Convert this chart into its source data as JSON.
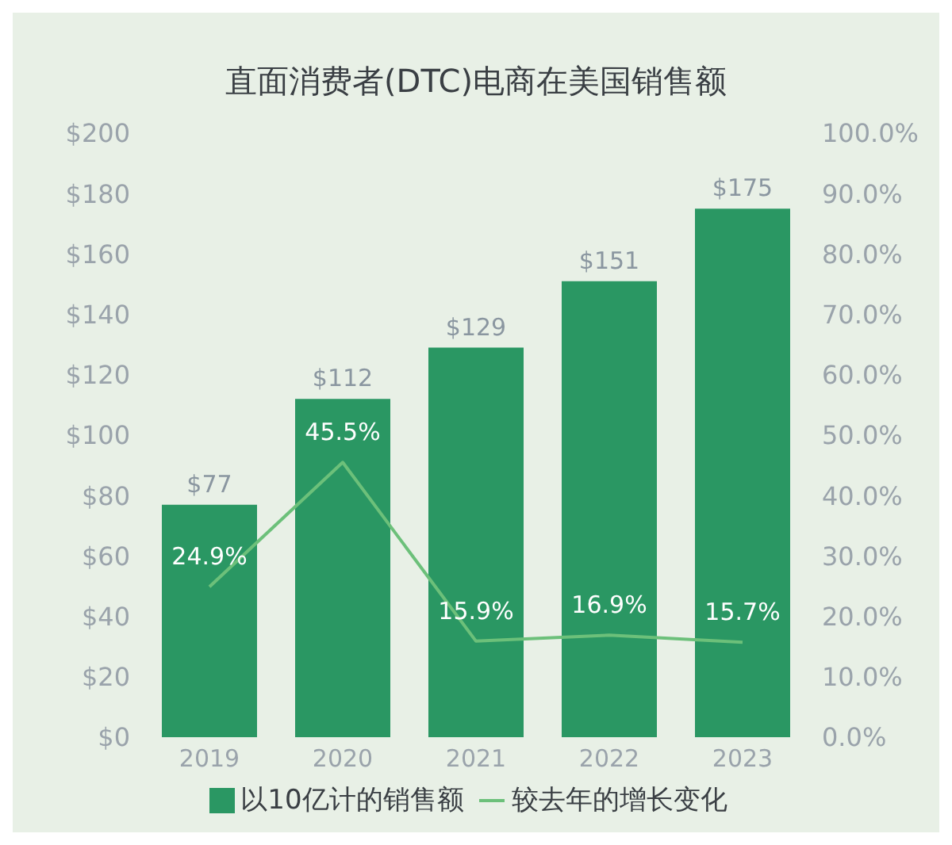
{
  "chart_data": {
    "type": "bar",
    "title": "直面消费者(DTC)电商在美国销售额",
    "categories": [
      "2019",
      "2020",
      "2021",
      "2022",
      "2023"
    ],
    "series": [
      {
        "name": "以10亿计的销售额",
        "color": "#2a9763",
        "values": [
          77,
          112,
          129,
          151,
          175
        ],
        "value_labels": [
          "$77",
          "$112",
          "$129",
          "$151",
          "$175"
        ]
      },
      {
        "name": "较去年的增长变化",
        "type": "line",
        "axis": "y2",
        "color": "#6cc07a",
        "values": [
          24.9,
          45.5,
          15.9,
          16.9,
          15.7
        ],
        "value_labels": [
          "24.9%",
          "45.5%",
          "15.9%",
          "16.9%",
          "15.7%"
        ]
      }
    ],
    "ylim": [
      0,
      200
    ],
    "yticks": [
      {
        "value": 0,
        "label": "$0"
      },
      {
        "value": 20,
        "label": "$20"
      },
      {
        "value": 40,
        "label": "$40"
      },
      {
        "value": 60,
        "label": "$60"
      },
      {
        "value": 80,
        "label": "$80"
      },
      {
        "value": 100,
        "label": "$100"
      },
      {
        "value": 120,
        "label": "$120"
      },
      {
        "value": 140,
        "label": "$140"
      },
      {
        "value": 160,
        "label": "$160"
      },
      {
        "value": 180,
        "label": "$180"
      },
      {
        "value": 200,
        "label": "$200"
      }
    ],
    "y2lim": [
      0,
      100
    ],
    "y2ticks": [
      {
        "value": 0,
        "label": "0.0%"
      },
      {
        "value": 10,
        "label": "10.0%"
      },
      {
        "value": 20,
        "label": "20.0%"
      },
      {
        "value": 30,
        "label": "30.0%"
      },
      {
        "value": 40,
        "label": "40.0%"
      },
      {
        "value": 50,
        "label": "50.0%"
      },
      {
        "value": 60,
        "label": "60.0%"
      },
      {
        "value": 70,
        "label": "70.0%"
      },
      {
        "value": 80,
        "label": "80.0%"
      },
      {
        "value": 90,
        "label": "90.0%"
      },
      {
        "value": 100,
        "label": "100.0%"
      }
    ],
    "grid": false,
    "legend": "bottom",
    "marker": "none"
  }
}
